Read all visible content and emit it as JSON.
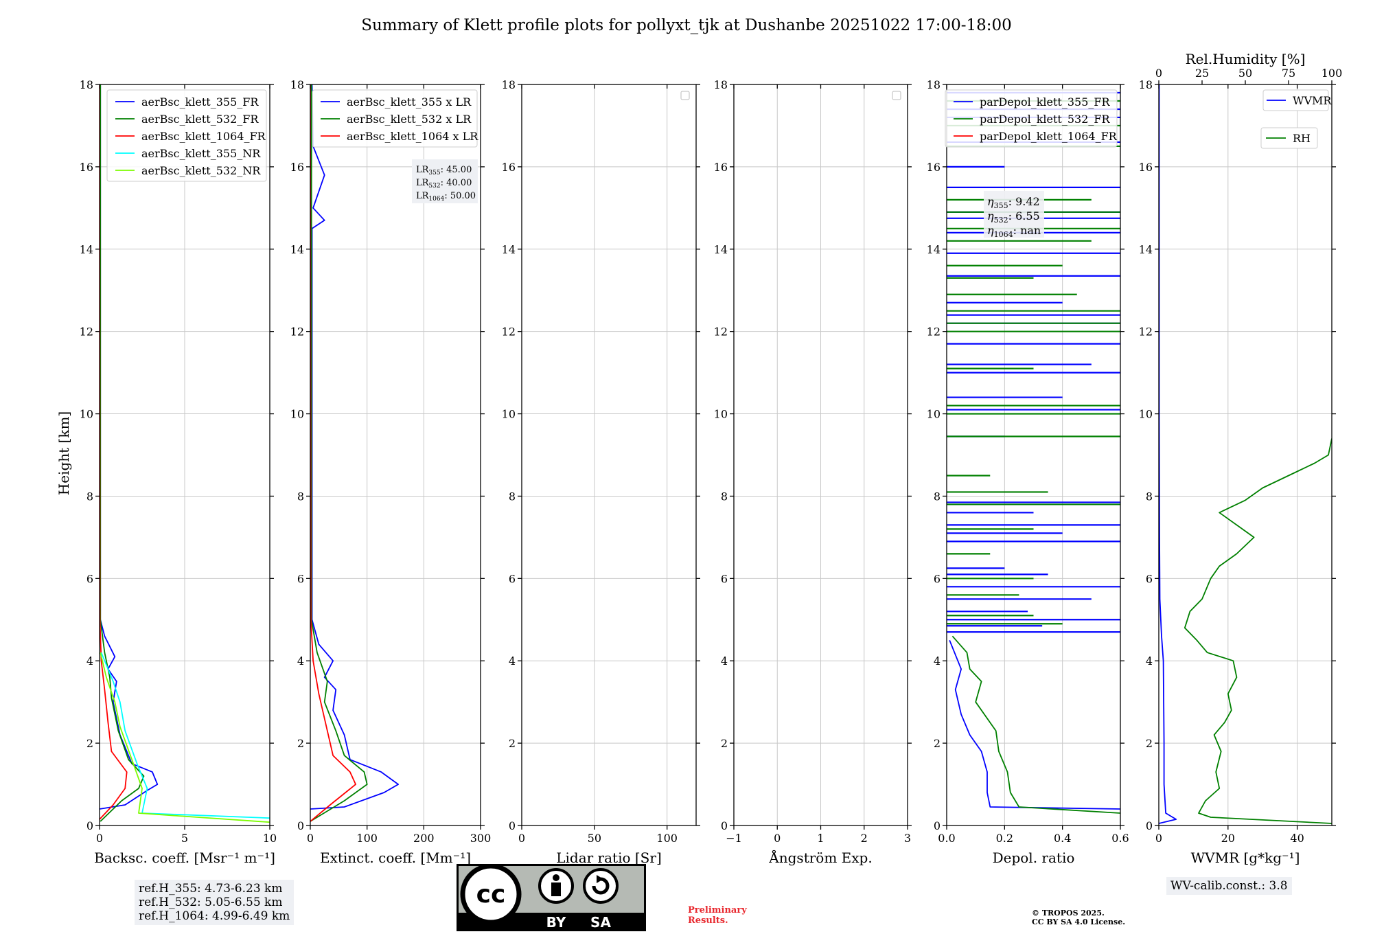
{
  "figure_title": "Summary of Klett profile plots for pollyxt_tjk at Dushanbe 20251022 17:00-18:00",
  "y_label": "Height [km]",
  "colors": {
    "blue": "#0000ff",
    "green": "#008000",
    "red": "#ff0000",
    "cyan": "#00ffff",
    "lightgreen": "#7cfc00",
    "grid": "#c8c8c8",
    "box": "#eef0f4"
  },
  "chart_data": [
    {
      "type": "line",
      "id": "bsc",
      "xlabel": "Backsc. coeff. [Msr⁻¹ m⁻¹]",
      "xlim": [
        0,
        10
      ],
      "ylim": [
        0,
        18
      ],
      "xticks": [
        0,
        5,
        10
      ],
      "yticks": [
        0,
        2,
        4,
        6,
        8,
        10,
        12,
        14,
        16,
        18
      ],
      "legend": "top-right",
      "series": [
        {
          "name": "aerBsc_klett_355_FR",
          "color": "#0000ff",
          "points": [
            [
              0,
              0.4
            ],
            [
              1.5,
              0.5
            ],
            [
              2.8,
              0.85
            ],
            [
              3.4,
              1.0
            ],
            [
              3.1,
              1.3
            ],
            [
              1.9,
              1.5
            ],
            [
              1.2,
              2.2
            ],
            [
              0.8,
              3.0
            ],
            [
              1.0,
              3.5
            ],
            [
              0.5,
              3.8
            ],
            [
              0.9,
              4.1
            ],
            [
              0.3,
              4.6
            ],
            [
              0.05,
              5.0
            ],
            [
              0.05,
              18.0
            ]
          ]
        },
        {
          "name": "aerBsc_klett_532_FR",
          "color": "#008000",
          "points": [
            [
              0.05,
              0.1
            ],
            [
              1.3,
              0.6
            ],
            [
              2.3,
              0.9
            ],
            [
              2.6,
              1.2
            ],
            [
              1.7,
              1.6
            ],
            [
              1.1,
              2.3
            ],
            [
              0.7,
              3.1
            ],
            [
              0.6,
              3.6
            ],
            [
              0.3,
              4.2
            ],
            [
              0.05,
              5.0
            ],
            [
              0.05,
              18.0
            ]
          ]
        },
        {
          "name": "aerBsc_klett_1064_FR",
          "color": "#ff0000",
          "points": [
            [
              0.0,
              0.15
            ],
            [
              0.8,
              0.5
            ],
            [
              1.5,
              0.9
            ],
            [
              1.6,
              1.3
            ],
            [
              0.7,
              1.8
            ],
            [
              0.5,
              2.5
            ],
            [
              0.3,
              3.3
            ],
            [
              0.1,
              4.0
            ],
            [
              0.02,
              5.0
            ],
            [
              0.0,
              18.0
            ]
          ]
        },
        {
          "name": "aerBsc_klett_355_NR",
          "color": "#00ffff",
          "points": [
            [
              10.0,
              0.18
            ],
            [
              2.5,
              0.3
            ],
            [
              2.8,
              0.9
            ],
            [
              2.2,
              1.5
            ],
            [
              1.5,
              2.3
            ],
            [
              1.2,
              3.0
            ],
            [
              0.8,
              3.5
            ],
            [
              0.1,
              4.2
            ]
          ]
        },
        {
          "name": "aerBsc_klett_532_NR",
          "color": "#7cfc00",
          "points": [
            [
              10.0,
              0.08
            ],
            [
              2.3,
              0.3
            ],
            [
              2.5,
              0.9
            ],
            [
              1.9,
              1.6
            ],
            [
              1.2,
              2.4
            ],
            [
              0.9,
              3.0
            ],
            [
              0.4,
              3.6
            ],
            [
              0.05,
              4.2
            ]
          ]
        }
      ]
    },
    {
      "type": "line",
      "id": "ext",
      "xlabel": "Extinct. coeff. [Mm⁻¹]",
      "xlim": [
        0,
        300
      ],
      "ylim": [
        0,
        18
      ],
      "xticks": [
        0,
        100,
        200,
        300
      ],
      "yticks": [
        0,
        2,
        4,
        6,
        8,
        10,
        12,
        14,
        16,
        18
      ],
      "legend": "top-right",
      "annotation": {
        "LR355": "45.00",
        "LR532": "40.00",
        "LR1064": "50.00"
      },
      "series": [
        {
          "name": "aerBsc_klett_355 x LR",
          "color": "#0000ff",
          "points": [
            [
              0,
              0.4
            ],
            [
              60,
              0.45
            ],
            [
              130,
              0.8
            ],
            [
              155,
              1.0
            ],
            [
              125,
              1.3
            ],
            [
              70,
              1.6
            ],
            [
              60,
              2.2
            ],
            [
              40,
              2.8
            ],
            [
              45,
              3.3
            ],
            [
              25,
              3.6
            ],
            [
              40,
              4.0
            ],
            [
              15,
              4.4
            ],
            [
              3,
              5.0
            ],
            [
              3,
              14.5
            ],
            [
              25,
              14.7
            ],
            [
              5,
              15.0
            ],
            [
              25,
              15.8
            ],
            [
              5,
              16.5
            ],
            [
              3,
              18.0
            ]
          ]
        },
        {
          "name": "aerBsc_klett_532 x LR",
          "color": "#008000",
          "points": [
            [
              0,
              0.1
            ],
            [
              60,
              0.6
            ],
            [
              100,
              1.0
            ],
            [
              95,
              1.3
            ],
            [
              60,
              1.7
            ],
            [
              45,
              2.3
            ],
            [
              25,
              3.0
            ],
            [
              30,
              3.5
            ],
            [
              12,
              4.2
            ],
            [
              2,
              5.0
            ],
            [
              2,
              18.0
            ]
          ]
        },
        {
          "name": "aerBsc_klett_1064 x LR",
          "color": "#ff0000",
          "points": [
            [
              0,
              0.1
            ],
            [
              35,
              0.5
            ],
            [
              80,
              1.0
            ],
            [
              70,
              1.3
            ],
            [
              40,
              1.7
            ],
            [
              30,
              2.3
            ],
            [
              15,
              3.2
            ],
            [
              5,
              4.0
            ],
            [
              1,
              5.0
            ],
            [
              0,
              18.0
            ]
          ]
        }
      ]
    },
    {
      "type": "line",
      "id": "lr",
      "xlabel": "Lidar ratio [Sr]",
      "xlim": [
        0,
        120
      ],
      "ylim": [
        0,
        18
      ],
      "xticks": [
        0,
        50,
        100
      ],
      "yticks": [
        0,
        2,
        4,
        6,
        8,
        10,
        12,
        14,
        16,
        18
      ],
      "series": []
    },
    {
      "type": "line",
      "id": "ang",
      "xlabel": "Ångström Exp.",
      "xlim": [
        -1,
        3
      ],
      "ylim": [
        0,
        18
      ],
      "xticks": [
        -1,
        0,
        1,
        2,
        3
      ],
      "yticks": [
        0,
        2,
        4,
        6,
        8,
        10,
        12,
        14,
        16,
        18
      ],
      "series": []
    },
    {
      "type": "line",
      "id": "depol",
      "xlabel": "Depol. ratio",
      "xlim": [
        0,
        0.6
      ],
      "ylim": [
        0,
        18
      ],
      "xticks": [
        0.0,
        0.2,
        0.4,
        0.6
      ],
      "yticks": [
        0,
        2,
        4,
        6,
        8,
        10,
        12,
        14,
        16,
        18
      ],
      "legend": "top-right",
      "annotation": {
        "eta355": "9.42",
        "eta532": "6.55",
        "eta1064": "nan"
      },
      "series": [
        {
          "name": "parDepol_klett_355_FR",
          "color": "#0000ff",
          "points": [
            [
              0.6,
              0.4
            ],
            [
              0.15,
              0.45
            ],
            [
              0.14,
              0.8
            ],
            [
              0.14,
              1.3
            ],
            [
              0.12,
              1.8
            ],
            [
              0.08,
              2.2
            ],
            [
              0.05,
              2.7
            ],
            [
              0.03,
              3.3
            ],
            [
              0.05,
              3.8
            ],
            [
              0.01,
              4.5
            ]
          ]
        },
        {
          "name": "parDepol_klett_532_FR",
          "color": "#008000",
          "points": [
            [
              0.6,
              0.3
            ],
            [
              0.25,
              0.45
            ],
            [
              0.22,
              0.8
            ],
            [
              0.21,
              1.3
            ],
            [
              0.18,
              1.8
            ],
            [
              0.17,
              2.3
            ],
            [
              0.1,
              3.0
            ],
            [
              0.12,
              3.5
            ],
            [
              0.08,
              3.8
            ],
            [
              0.07,
              4.2
            ],
            [
              0.02,
              4.6
            ]
          ]
        },
        {
          "name": "parDepol_klett_1064_FR",
          "color": "#ff0000",
          "points": []
        }
      ],
      "spikes": {
        "blue": [
          [
            4.7,
            0.6
          ],
          [
            4.85,
            0.33
          ],
          [
            5.0,
            0.6
          ],
          [
            5.2,
            0.28
          ],
          [
            5.5,
            0.5
          ],
          [
            5.8,
            0.6
          ],
          [
            6.1,
            0.35
          ],
          [
            6.25,
            0.2
          ],
          [
            6.9,
            0.6
          ],
          [
            7.1,
            0.4
          ],
          [
            7.3,
            0.6
          ],
          [
            7.6,
            0.3
          ],
          [
            7.85,
            0.6
          ],
          [
            9.45,
            0.2
          ],
          [
            10.1,
            0.6
          ],
          [
            10.4,
            0.4
          ],
          [
            11.0,
            0.6
          ],
          [
            11.2,
            0.5
          ],
          [
            11.7,
            0.6
          ],
          [
            12.2,
            0.6
          ],
          [
            12.4,
            0.6
          ],
          [
            12.7,
            0.4
          ],
          [
            13.35,
            0.6
          ],
          [
            13.9,
            0.6
          ],
          [
            14.4,
            0.6
          ],
          [
            14.75,
            0.6
          ],
          [
            14.9,
            0.6
          ],
          [
            15.5,
            0.6
          ],
          [
            16.0,
            0.2
          ],
          [
            16.6,
            0.6
          ],
          [
            17.2,
            0.6
          ],
          [
            17.4,
            0.6
          ],
          [
            17.8,
            0.6
          ]
        ],
        "green": [
          [
            4.9,
            0.4
          ],
          [
            5.1,
            0.3
          ],
          [
            5.6,
            0.25
          ],
          [
            6.0,
            0.3
          ],
          [
            6.6,
            0.15
          ],
          [
            7.2,
            0.3
          ],
          [
            7.8,
            0.6
          ],
          [
            8.1,
            0.35
          ],
          [
            8.5,
            0.15
          ],
          [
            9.45,
            0.6
          ],
          [
            10.0,
            0.6
          ],
          [
            10.2,
            0.6
          ],
          [
            11.1,
            0.3
          ],
          [
            12.0,
            0.6
          ],
          [
            12.2,
            0.6
          ],
          [
            12.5,
            0.6
          ],
          [
            12.9,
            0.45
          ],
          [
            13.3,
            0.3
          ],
          [
            13.6,
            0.4
          ],
          [
            14.2,
            0.5
          ],
          [
            14.5,
            0.6
          ],
          [
            14.9,
            0.6
          ],
          [
            15.2,
            0.5
          ],
          [
            16.5,
            0.6
          ],
          [
            17.0,
            0.6
          ],
          [
            17.6,
            0.6
          ]
        ]
      }
    },
    {
      "type": "line",
      "id": "wv",
      "xlabel": "WVMR [g*kg⁻¹]",
      "x2label": "Rel.Humidity [%]",
      "xlim": [
        0,
        50
      ],
      "x2lim": [
        0,
        100
      ],
      "ylim": [
        0,
        18
      ],
      "xticks": [
        0,
        20,
        40
      ],
      "x2ticks": [
        0,
        25,
        50,
        75,
        100
      ],
      "yticks": [
        0,
        2,
        4,
        6,
        8,
        10,
        12,
        14,
        16,
        18
      ],
      "legend": "top-right",
      "series": [
        {
          "name": "WVMR",
          "color": "#0000ff",
          "axis": "bottom",
          "points": [
            [
              0,
              0.05
            ],
            [
              5,
              0.15
            ],
            [
              2,
              0.3
            ],
            [
              1.5,
              1.0
            ],
            [
              1.5,
              2.0
            ],
            [
              1.4,
              3.0
            ],
            [
              1.3,
              4.0
            ],
            [
              0.8,
              4.6
            ],
            [
              0.3,
              5.5
            ],
            [
              0.2,
              7.0
            ],
            [
              0.1,
              10.0
            ],
            [
              0.1,
              18.0
            ]
          ]
        },
        {
          "name": "RH",
          "color": "#008000",
          "axis": "top",
          "points": [
            [
              100,
              0.05
            ],
            [
              30,
              0.2
            ],
            [
              23,
              0.3
            ],
            [
              27,
              0.6
            ],
            [
              35,
              0.9
            ],
            [
              33,
              1.3
            ],
            [
              36,
              1.8
            ],
            [
              32,
              2.2
            ],
            [
              38,
              2.5
            ],
            [
              42,
              2.8
            ],
            [
              40,
              3.2
            ],
            [
              45,
              3.6
            ],
            [
              43,
              4.0
            ],
            [
              28,
              4.2
            ],
            [
              22,
              4.5
            ],
            [
              15,
              4.8
            ],
            [
              18,
              5.2
            ],
            [
              25,
              5.5
            ],
            [
              30,
              6.0
            ],
            [
              35,
              6.3
            ],
            [
              45,
              6.6
            ],
            [
              55,
              7.0
            ],
            [
              45,
              7.3
            ],
            [
              35,
              7.6
            ],
            [
              50,
              7.9
            ],
            [
              60,
              8.2
            ],
            [
              70,
              8.4
            ],
            [
              80,
              8.6
            ],
            [
              90,
              8.8
            ],
            [
              98,
              9.0
            ],
            [
              100,
              9.4
            ]
          ]
        }
      ]
    }
  ],
  "ref_heights": [
    "ref.H_355: 4.73-6.23 km",
    "ref.H_532: 5.05-6.55 km",
    "ref.H_1064: 4.99-6.49 km"
  ],
  "wv_calib": "WV-calib.const.: 3.8",
  "cc_badge": {
    "cc": "cc",
    "by": "BY",
    "sa": "SA"
  },
  "preliminary": [
    "Preliminary",
    "Results."
  ],
  "copyright": [
    "© TROPOS 2025.",
    "CC BY SA 4.0 License."
  ]
}
